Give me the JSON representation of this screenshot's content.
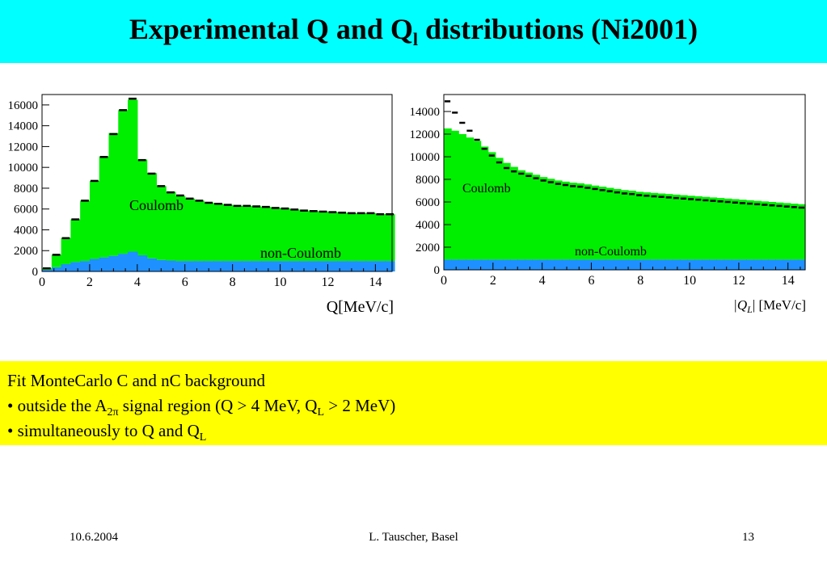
{
  "title": {
    "main": "Experimental Q  and Q",
    "sub": "l",
    "rest": " distributions (Ni2001)"
  },
  "colors": {
    "title_bg": "#00ffff",
    "notes_bg": "#ffff00",
    "coulomb": "#00ee00",
    "non_coulomb": "#1e90ff",
    "data_markers": "#000000"
  },
  "chart_data": [
    {
      "type": "bar",
      "subtype": "stacked-histogram",
      "xlabel": "Q[MeV/c]",
      "xlim": [
        0,
        14.7
      ],
      "ylim": [
        0,
        17000
      ],
      "xticks": [
        "0",
        "2",
        "4",
        "6",
        "8",
        "10",
        "12",
        "14"
      ],
      "yticks": [
        "0",
        "2000",
        "4000",
        "6000",
        "8000",
        "10000",
        "12000",
        "14000",
        "16000"
      ],
      "bin_width": 0.4,
      "bin_centers": [
        0.2,
        0.6,
        1.0,
        1.4,
        1.8,
        2.2,
        2.6,
        3.0,
        3.4,
        3.8,
        4.2,
        4.6,
        5.0,
        5.4,
        5.8,
        6.2,
        6.6,
        7.0,
        7.4,
        7.8,
        8.2,
        8.6,
        9.0,
        9.4,
        9.8,
        10.2,
        10.6,
        11.0,
        11.4,
        11.8,
        12.2,
        12.6,
        13.0,
        13.4,
        13.8,
        14.2,
        14.6
      ],
      "series": [
        {
          "name": "non-Coulomb",
          "values": [
            150,
            400,
            700,
            900,
            1000,
            1200,
            1350,
            1500,
            1700,
            1900,
            1550,
            1250,
            1100,
            1050,
            1000,
            1000,
            1000,
            1000,
            1000,
            1000,
            1000,
            1000,
            1000,
            1000,
            1000,
            1000,
            1000,
            1000,
            1000,
            1000,
            1000,
            1000,
            1000,
            1000,
            1000,
            1000,
            1000
          ]
        },
        {
          "name": "Coulomb",
          "values": [
            150,
            1200,
            2500,
            4100,
            5800,
            7500,
            9700,
            11800,
            13800,
            14600,
            9200,
            8200,
            7100,
            6600,
            6250,
            6000,
            5800,
            5600,
            5500,
            5400,
            5300,
            5300,
            5250,
            5200,
            5100,
            5050,
            4950,
            4850,
            4800,
            4750,
            4700,
            4650,
            4600,
            4600,
            4600,
            4500,
            4500
          ]
        },
        {
          "name": "data",
          "values": [
            300,
            1600,
            3200,
            5000,
            6800,
            8700,
            11000,
            13200,
            15500,
            16600,
            10700,
            9400,
            8200,
            7600,
            7300,
            7000,
            6800,
            6600,
            6500,
            6400,
            6300,
            6300,
            6250,
            6200,
            6100,
            6050,
            5950,
            5850,
            5800,
            5750,
            5700,
            5650,
            5600,
            5600,
            5600,
            5500,
            5500
          ]
        }
      ],
      "annotations": [
        "Coulomb",
        "non-Coulomb"
      ]
    },
    {
      "type": "bar",
      "subtype": "stacked-histogram",
      "xlabel_parts": {
        "pre": "|Q",
        "sub": "L",
        "post": "| [MeV/c]"
      },
      "xlim": [
        0,
        14.7
      ],
      "ylim": [
        0,
        15500
      ],
      "xticks": [
        "0",
        "2",
        "4",
        "6",
        "8",
        "10",
        "12",
        "14"
      ],
      "yticks": [
        "0",
        "2000",
        "4000",
        "6000",
        "8000",
        "10000",
        "12000",
        "14000"
      ],
      "bin_width": 0.3,
      "bin_centers": [
        0.15,
        0.45,
        0.75,
        1.05,
        1.35,
        1.65,
        1.95,
        2.25,
        2.55,
        2.85,
        3.15,
        3.45,
        3.75,
        4.05,
        4.35,
        4.65,
        4.95,
        5.25,
        5.55,
        5.85,
        6.15,
        6.45,
        6.75,
        7.05,
        7.35,
        7.65,
        7.95,
        8.25,
        8.55,
        8.85,
        9.15,
        9.45,
        9.75,
        10.05,
        10.35,
        10.65,
        10.95,
        11.25,
        11.55,
        11.85,
        12.15,
        12.45,
        12.75,
        13.05,
        13.35,
        13.65,
        13.95,
        14.25,
        14.55
      ],
      "series": [
        {
          "name": "non-Coulomb",
          "values": [
            900,
            900,
            900,
            900,
            900,
            900,
            900,
            900,
            900,
            900,
            900,
            900,
            900,
            900,
            900,
            900,
            900,
            900,
            900,
            900,
            900,
            900,
            900,
            900,
            900,
            900,
            900,
            900,
            900,
            900,
            900,
            900,
            900,
            900,
            900,
            900,
            900,
            900,
            900,
            900,
            900,
            900,
            900,
            900,
            900,
            900,
            900,
            900,
            900
          ]
        },
        {
          "name": "Coulomb",
          "values": [
            11600,
            11400,
            11100,
            10800,
            10500,
            10000,
            9500,
            9000,
            8550,
            8200,
            7900,
            7700,
            7500,
            7300,
            7150,
            7000,
            6900,
            6800,
            6750,
            6650,
            6550,
            6450,
            6350,
            6250,
            6150,
            6100,
            6000,
            5950,
            5900,
            5850,
            5800,
            5750,
            5700,
            5650,
            5600,
            5550,
            5500,
            5450,
            5400,
            5350,
            5300,
            5250,
            5200,
            5150,
            5100,
            5050,
            5000,
            4950,
            4900
          ]
        },
        {
          "name": "data",
          "values": [
            14900,
            13900,
            13000,
            12300,
            11500,
            10700,
            10100,
            9500,
            9000,
            8700,
            8500,
            8300,
            8100,
            7900,
            7750,
            7600,
            7500,
            7400,
            7350,
            7250,
            7150,
            7050,
            6950,
            6850,
            6750,
            6700,
            6600,
            6550,
            6500,
            6450,
            6400,
            6350,
            6300,
            6250,
            6200,
            6150,
            6100,
            6050,
            6000,
            5950,
            5900,
            5850,
            5800,
            5750,
            5700,
            5650,
            5600,
            5550,
            5500
          ]
        }
      ],
      "annotations": [
        "Coulomb",
        "non-Coulomb"
      ]
    }
  ],
  "notes": {
    "line1": "Fit MonteCarlo C and nC background",
    "line2_pre": "• outside the A",
    "line2_sub": "2π",
    "line2_post": " signal region (Q > 4 MeV, Q",
    "line2_sub2": "L",
    "line2_end": " > 2 MeV)",
    "line3_pre": "• simultaneously to Q and Q",
    "line3_sub": "L"
  },
  "footer": {
    "date": "10.6.2004",
    "author": "L. Tauscher, Basel",
    "page": "13"
  }
}
